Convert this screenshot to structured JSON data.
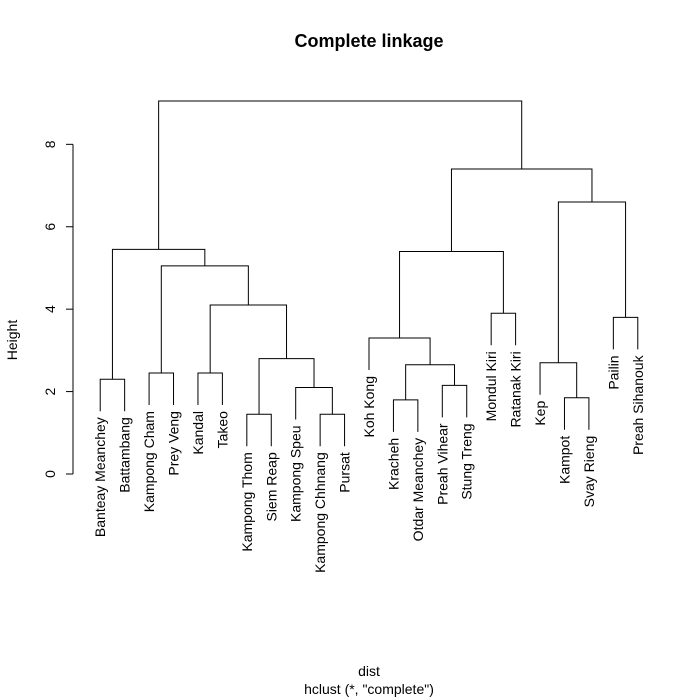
{
  "chart_data": {
    "type": "dendrogram",
    "title": "Complete linkage",
    "ylabel": "Height",
    "xlabel": "dist",
    "sub": "hclust (*, \"complete\")",
    "ylim": [
      0,
      9.1
    ],
    "yticks": [
      0,
      2,
      4,
      6,
      8
    ],
    "leaves": [
      "Banteay Meanchey",
      "Battambang",
      "Kampong Cham",
      "Prey Veng",
      "Kandal",
      "Takeo",
      "Kampong Thom",
      "Siem Reap",
      "Kampong Speu",
      "Kampong Chhnang",
      "Pursat",
      "Koh Kong",
      "Kracheh",
      "Otdar Meanchey",
      "Preah Vihear",
      "Stung Treng",
      "Mondul Kiri",
      "Ratanak Kiri",
      "Kep",
      "Kampot",
      "Svay Rieng",
      "Pailin",
      "Preah Sihanouk"
    ],
    "merges": [
      {
        "id": "m1",
        "left": "Banteay Meanchey",
        "right": "Battambang",
        "height": 2.3
      },
      {
        "id": "m2",
        "left": "Kampong Cham",
        "right": "Prey Veng",
        "height": 2.45
      },
      {
        "id": "m3",
        "left": "Kandal",
        "right": "Takeo",
        "height": 2.45
      },
      {
        "id": "m4",
        "left": "Kampong Thom",
        "right": "Siem Reap",
        "height": 1.45
      },
      {
        "id": "m5",
        "left": "Kampong Chhnang",
        "right": "Pursat",
        "height": 1.45
      },
      {
        "id": "m6",
        "left": "Kampong Speu",
        "right": "m5",
        "height": 2.1
      },
      {
        "id": "m7",
        "left": "m4",
        "right": "m6",
        "height": 2.8
      },
      {
        "id": "m8",
        "left": "m3",
        "right": "m7",
        "height": 4.1
      },
      {
        "id": "m9",
        "left": "m2",
        "right": "m8",
        "height": 5.05
      },
      {
        "id": "m10",
        "left": "m1",
        "right": "m9",
        "height": 5.45
      },
      {
        "id": "m11",
        "left": "Kracheh",
        "right": "Otdar Meanchey",
        "height": 1.8
      },
      {
        "id": "m12",
        "left": "Preah Vihear",
        "right": "Stung Treng",
        "height": 2.15
      },
      {
        "id": "m13",
        "left": "m11",
        "right": "m12",
        "height": 2.65
      },
      {
        "id": "m14",
        "left": "Koh Kong",
        "right": "m13",
        "height": 3.3
      },
      {
        "id": "m15",
        "left": "Mondul Kiri",
        "right": "Ratanak Kiri",
        "height": 3.9
      },
      {
        "id": "m16",
        "left": "m14",
        "right": "m15",
        "height": 5.4
      },
      {
        "id": "m17",
        "left": "Kampot",
        "right": "Svay Rieng",
        "height": 1.85
      },
      {
        "id": "m18",
        "left": "Kep",
        "right": "m17",
        "height": 2.7
      },
      {
        "id": "m19",
        "left": "Pailin",
        "right": "Preah Sihanouk",
        "height": 3.8
      },
      {
        "id": "m20",
        "left": "m18",
        "right": "m19",
        "height": 6.6
      },
      {
        "id": "m21",
        "left": "m16",
        "right": "m20",
        "height": 7.4
      },
      {
        "id": "m22",
        "left": "m10",
        "right": "m21",
        "height": 9.05
      }
    ],
    "leaf_label_hang": 0.25,
    "grid": false,
    "legend": "none"
  }
}
